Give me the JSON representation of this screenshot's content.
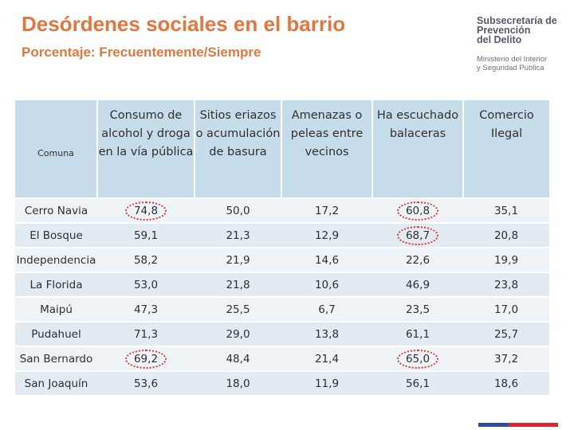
{
  "header": {
    "title": "Desórdenes sociales en el barrio",
    "subtitle": "Porcentaje: Frecuentemente/Siempre"
  },
  "logo": {
    "org_line1": "Subsecretaría de",
    "org_line2": "Prevención",
    "org_line3": "del Delito",
    "ministry_line1": "Ministerio del Interior",
    "ministry_line2": "y Seguridad Pública"
  },
  "colors": {
    "title": "#e2763f",
    "header_bg": "#c7dceb",
    "row_light": "#eef3f8",
    "row_dark": "#e2eaf2",
    "highlight_circle": "#d83a3a",
    "flag_blue": "#2c4f9b",
    "flag_red": "#d8262f"
  },
  "table": {
    "columns": [
      "Comuna",
      "Consumo de alcohol y droga en la vía pública",
      "Sitios eriazos o acumulación de basura",
      "Amenazas o peleas entre vecinos",
      "Ha escuchado balaceras",
      "Comercio Ilegal"
    ],
    "rows": [
      {
        "comuna": "Cerro Navia",
        "values": [
          "74,8",
          "50,0",
          "17,2",
          "60,8",
          "35,1"
        ],
        "circled": [
          true,
          false,
          false,
          true,
          false
        ]
      },
      {
        "comuna": "El Bosque",
        "values": [
          "59,1",
          "21,3",
          "12,9",
          "68,7",
          "20,8"
        ],
        "circled": [
          false,
          false,
          false,
          true,
          false
        ]
      },
      {
        "comuna": "Independencia",
        "values": [
          "58,2",
          "21,9",
          "14,6",
          "22,6",
          "19,9"
        ],
        "circled": [
          false,
          false,
          false,
          false,
          false
        ]
      },
      {
        "comuna": "La Florida",
        "values": [
          "53,0",
          "21,8",
          "10,6",
          "46,9",
          "23,8"
        ],
        "circled": [
          false,
          false,
          false,
          false,
          false
        ]
      },
      {
        "comuna": "Maipú",
        "values": [
          "47,3",
          "25,5",
          "6,7",
          "23,5",
          "17,0"
        ],
        "circled": [
          false,
          false,
          false,
          false,
          false
        ]
      },
      {
        "comuna": "Pudahuel",
        "values": [
          "71,3",
          "29,0",
          "13,8",
          "61,1",
          "25,7"
        ],
        "circled": [
          false,
          false,
          false,
          false,
          false
        ]
      },
      {
        "comuna": "San Bernardo",
        "values": [
          "69,2",
          "48,4",
          "21,4",
          "65,0",
          "37,2"
        ],
        "circled": [
          true,
          false,
          false,
          true,
          false
        ]
      },
      {
        "comuna": "San Joaquín",
        "values": [
          "53,6",
          "18,0",
          "11,9",
          "56,1",
          "18,6"
        ],
        "circled": [
          false,
          false,
          false,
          false,
          false
        ]
      }
    ]
  }
}
